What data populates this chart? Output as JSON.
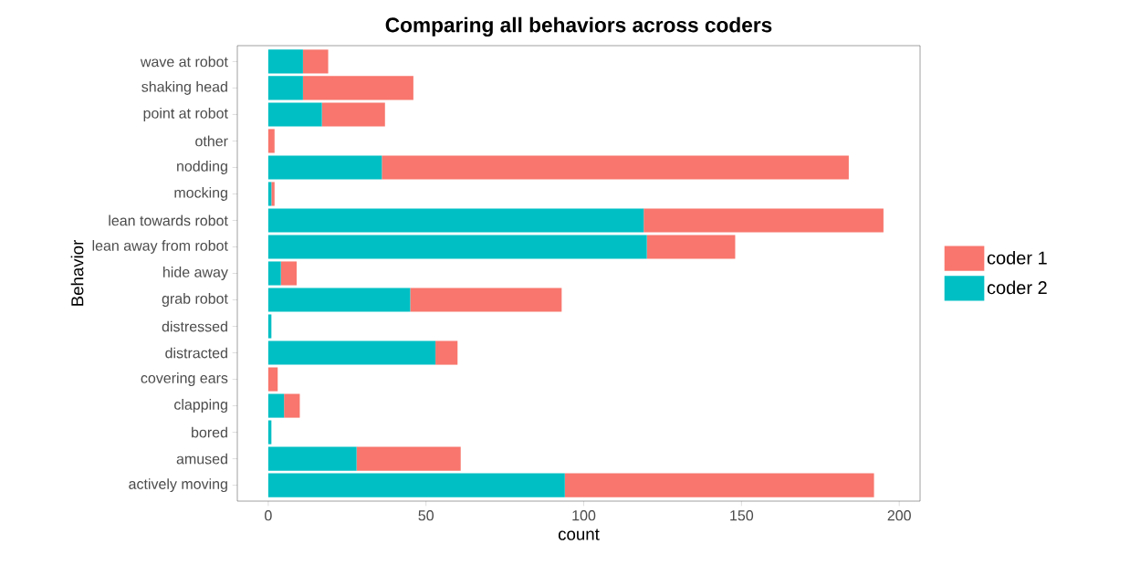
{
  "chart_data": {
    "type": "bar",
    "orientation": "horizontal",
    "stacked": true,
    "title": "Comparing all behaviors across coders",
    "xlabel": "count",
    "ylabel": "Behavior",
    "categories": [
      "wave at robot",
      "shaking head",
      "point at robot",
      "other",
      "nodding",
      "mocking",
      "lean towards robot",
      "lean away from robot",
      "hide away",
      "grab robot",
      "distressed",
      "distracted",
      "covering ears",
      "clapping",
      "bored",
      "amused",
      "actively moving"
    ],
    "series": [
      {
        "name": "coder 2",
        "color": "#00bfc4",
        "values": [
          11,
          11,
          17,
          0,
          36,
          1,
          119,
          120,
          4,
          45,
          1,
          53,
          0,
          5,
          1,
          28,
          94
        ]
      },
      {
        "name": "coder 1",
        "color": "#f8766d",
        "values": [
          8,
          35,
          20,
          2,
          148,
          1,
          76,
          28,
          5,
          48,
          0,
          7,
          3,
          5,
          0,
          33,
          98
        ]
      }
    ],
    "xlim": [
      -9.8,
      206.6
    ],
    "xticks": [
      0,
      50,
      100,
      150,
      200
    ],
    "grid": false,
    "legend": "right"
  }
}
